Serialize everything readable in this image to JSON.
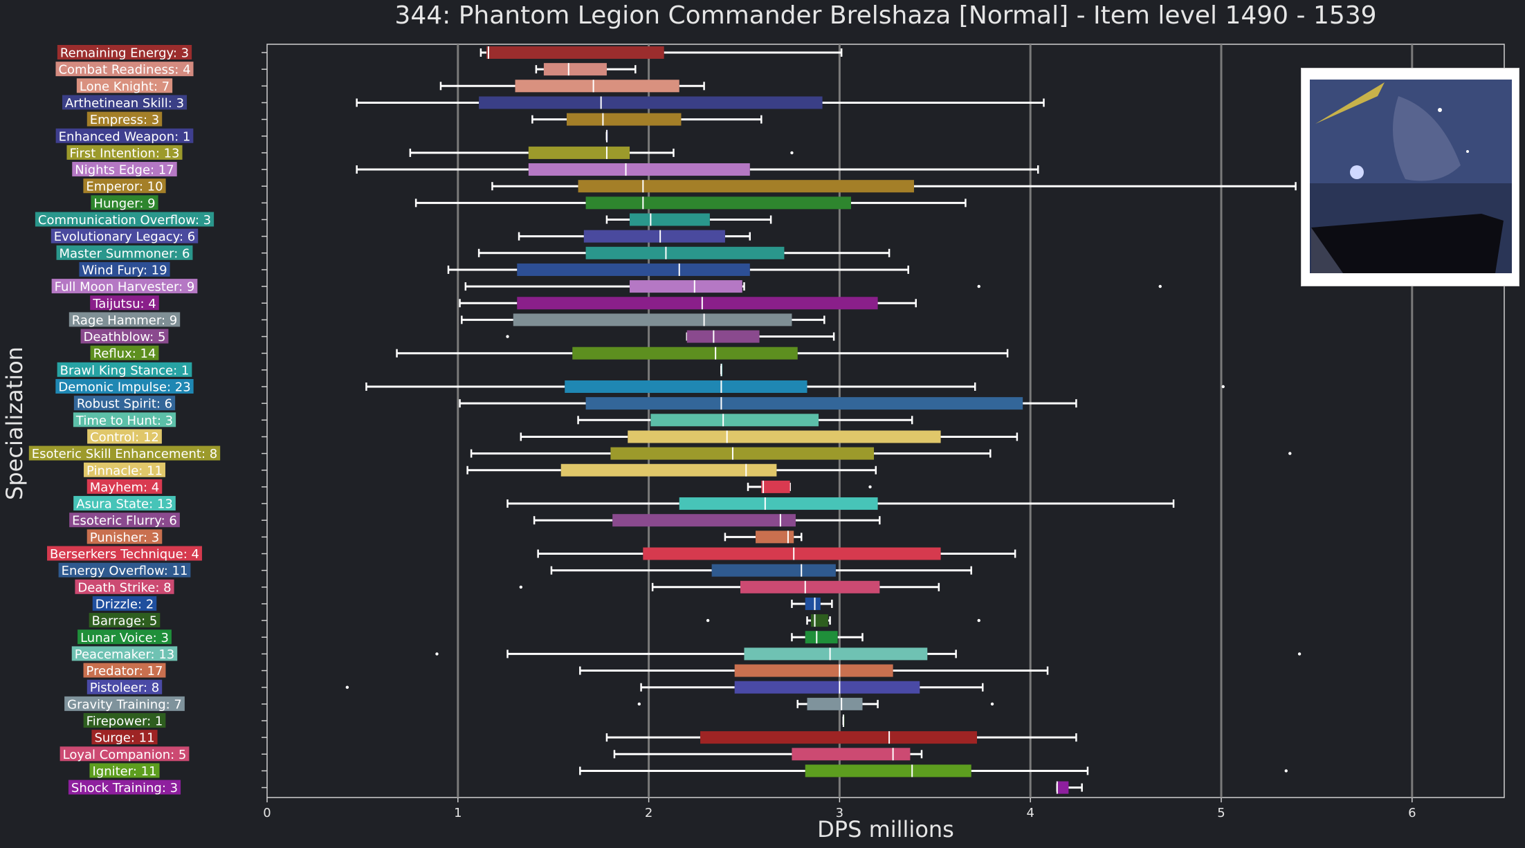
{
  "chart_data": {
    "type": "boxplot",
    "orientation": "horizontal",
    "title": "344: Phantom Legion Commander Brelshaza [Normal] - Item level 1490 - 1539",
    "xlabel": "DPS millions",
    "ylabel": "Specialization",
    "xlim": [
      0,
      6.5
    ],
    "xticks": [
      0,
      1,
      2,
      3,
      4,
      5,
      6
    ],
    "grid": "vertical major lines",
    "categories": [
      {
        "label": "Remaining Energy: 3",
        "color": "#9b2d2d",
        "whisker_low": 1.12,
        "q1": 1.15,
        "median": 1.16,
        "q3": 2.08,
        "whisker_high": 3.01,
        "outliers": []
      },
      {
        "label": "Combat Readiness: 4",
        "color": "#d48b80",
        "whisker_low": 1.41,
        "q1": 1.45,
        "median": 1.58,
        "q3": 1.78,
        "whisker_high": 1.93,
        "outliers": []
      },
      {
        "label": "Lone Knight: 7",
        "color": "#d9917f",
        "whisker_low": 0.91,
        "q1": 1.3,
        "median": 1.71,
        "q3": 2.16,
        "whisker_high": 2.29,
        "outliers": []
      },
      {
        "label": "Arthetinean Skill: 3",
        "color": "#3a3f86",
        "whisker_low": 0.47,
        "q1": 1.11,
        "median": 1.75,
        "q3": 2.91,
        "whisker_high": 4.07,
        "outliers": []
      },
      {
        "label": "Empress: 3",
        "color": "#a47f28",
        "whisker_low": 1.39,
        "q1": 1.57,
        "median": 1.76,
        "q3": 2.17,
        "whisker_high": 2.59,
        "outliers": []
      },
      {
        "label": "Enhanced Weapon: 1",
        "color": "#3f3f8f",
        "whisker_low": 1.78,
        "q1": 1.78,
        "median": 1.78,
        "q3": 1.78,
        "whisker_high": 1.78,
        "outliers": []
      },
      {
        "label": "First Intention: 13",
        "color": "#9c9a2b",
        "whisker_low": 0.75,
        "q1": 1.37,
        "median": 1.78,
        "q3": 1.9,
        "whisker_high": 2.13,
        "outliers": [
          2.75
        ]
      },
      {
        "label": "Nights Edge: 17",
        "color": "#b578c4",
        "whisker_low": 0.47,
        "q1": 1.37,
        "median": 1.88,
        "q3": 2.53,
        "whisker_high": 4.04,
        "outliers": []
      },
      {
        "label": "Emperor: 10",
        "color": "#a47f28",
        "whisker_low": 1.18,
        "q1": 1.63,
        "median": 1.97,
        "q3": 3.39,
        "whisker_high": 5.39,
        "outliers": []
      },
      {
        "label": "Hunger: 9",
        "color": "#2e862e",
        "whisker_low": 0.78,
        "q1": 1.67,
        "median": 1.97,
        "q3": 3.06,
        "whisker_high": 3.66,
        "outliers": []
      },
      {
        "label": "Communication Overflow: 3",
        "color": "#2a978c",
        "whisker_low": 1.78,
        "q1": 1.9,
        "median": 2.01,
        "q3": 2.32,
        "whisker_high": 2.64,
        "outliers": []
      },
      {
        "label": "Evolutionary Legacy: 6",
        "color": "#4a4a9e",
        "whisker_low": 1.32,
        "q1": 1.66,
        "median": 2.06,
        "q3": 2.4,
        "whisker_high": 2.53,
        "outliers": []
      },
      {
        "label": "Master Summoner: 6",
        "color": "#2a978c",
        "whisker_low": 1.11,
        "q1": 1.67,
        "median": 2.09,
        "q3": 2.71,
        "whisker_high": 3.26,
        "outliers": []
      },
      {
        "label": "Wind Fury: 19",
        "color": "#2d4f95",
        "whisker_low": 0.95,
        "q1": 1.31,
        "median": 2.16,
        "q3": 2.53,
        "whisker_high": 3.36,
        "outliers": []
      },
      {
        "label": "Full Moon Harvester: 9",
        "color": "#b578c4",
        "whisker_low": 1.04,
        "q1": 1.9,
        "median": 2.24,
        "q3": 2.49,
        "whisker_high": 2.5,
        "outliers": [
          3.73,
          4.68
        ]
      },
      {
        "label": "Taijutsu: 4",
        "color": "#8a1f8a",
        "whisker_low": 1.01,
        "q1": 1.31,
        "median": 2.28,
        "q3": 3.2,
        "whisker_high": 3.4,
        "outliers": []
      },
      {
        "label": "Rage Hammer: 9",
        "color": "#7f8f95",
        "whisker_low": 1.02,
        "q1": 1.29,
        "median": 2.29,
        "q3": 2.75,
        "whisker_high": 2.92,
        "outliers": []
      },
      {
        "label": "Deathblow: 5",
        "color": "#8a4a8e",
        "whisker_low": 2.2,
        "q1": 2.2,
        "median": 2.34,
        "q3": 2.58,
        "whisker_high": 2.97,
        "outliers": [
          1.26
        ]
      },
      {
        "label": "Reflux: 14",
        "color": "#5d8f1f",
        "whisker_low": 0.68,
        "q1": 1.6,
        "median": 2.35,
        "q3": 2.78,
        "whisker_high": 3.88,
        "outliers": []
      },
      {
        "label": "Brawl King Stance: 1",
        "color": "#27a3a3",
        "whisker_low": 2.38,
        "q1": 2.38,
        "median": 2.38,
        "q3": 2.38,
        "whisker_high": 2.38,
        "outliers": []
      },
      {
        "label": "Demonic Impulse: 23",
        "color": "#1f87b3",
        "whisker_low": 0.52,
        "q1": 1.56,
        "median": 2.38,
        "q3": 2.83,
        "whisker_high": 3.71,
        "outliers": [
          5.01
        ]
      },
      {
        "label": "Robust Spirit: 6",
        "color": "#336699",
        "whisker_low": 1.01,
        "q1": 1.67,
        "median": 2.38,
        "q3": 3.96,
        "whisker_high": 4.24,
        "outliers": []
      },
      {
        "label": "Time to Hunt: 3",
        "color": "#5cbfa8",
        "whisker_low": 1.63,
        "q1": 2.01,
        "median": 2.39,
        "q3": 2.89,
        "whisker_high": 3.38,
        "outliers": []
      },
      {
        "label": "Control: 12",
        "color": "#e0c76a",
        "whisker_low": 1.33,
        "q1": 1.89,
        "median": 2.41,
        "q3": 3.53,
        "whisker_high": 3.93,
        "outliers": []
      },
      {
        "label": "Esoteric Skill Enhancement: 8",
        "color": "#9c9a2b",
        "whisker_low": 1.07,
        "q1": 1.8,
        "median": 2.44,
        "q3": 3.18,
        "whisker_high": 3.79,
        "outliers": [
          5.36
        ]
      },
      {
        "label": "Pinnacle: 11",
        "color": "#e0c76a",
        "whisker_low": 1.05,
        "q1": 1.54,
        "median": 2.51,
        "q3": 2.67,
        "whisker_high": 3.19,
        "outliers": []
      },
      {
        "label": "Mayhem: 4",
        "color": "#d93a50",
        "whisker_low": 2.52,
        "q1": 2.59,
        "median": 2.6,
        "q3": 2.74,
        "whisker_high": 2.74,
        "outliers": [
          3.16
        ]
      },
      {
        "label": "Asura State: 13",
        "color": "#47c4b8",
        "whisker_low": 1.26,
        "q1": 2.16,
        "median": 2.61,
        "q3": 3.2,
        "whisker_high": 4.75,
        "outliers": []
      },
      {
        "label": "Esoteric Flurry: 6",
        "color": "#8a4a8e",
        "whisker_low": 1.4,
        "q1": 1.81,
        "median": 2.69,
        "q3": 2.77,
        "whisker_high": 3.21,
        "outliers": []
      },
      {
        "label": "Punisher: 3",
        "color": "#c9704f",
        "whisker_low": 2.4,
        "q1": 2.56,
        "median": 2.73,
        "q3": 2.76,
        "whisker_high": 2.8,
        "outliers": []
      },
      {
        "label": "Berserkers Technique: 4",
        "color": "#d63a4e",
        "whisker_low": 1.42,
        "q1": 1.97,
        "median": 2.76,
        "q3": 3.53,
        "whisker_high": 3.92,
        "outliers": []
      },
      {
        "label": "Energy Overflow: 11",
        "color": "#2f5a8f",
        "whisker_low": 1.49,
        "q1": 2.33,
        "median": 2.8,
        "q3": 2.98,
        "whisker_high": 3.69,
        "outliers": []
      },
      {
        "label": "Death Strike: 8",
        "color": "#cc4a72",
        "whisker_low": 2.02,
        "q1": 2.48,
        "median": 2.82,
        "q3": 3.21,
        "whisker_high": 3.52,
        "outliers": [
          1.33
        ]
      },
      {
        "label": "Drizzle: 2",
        "color": "#1f4f9e",
        "whisker_low": 2.75,
        "q1": 2.82,
        "median": 2.87,
        "q3": 2.9,
        "whisker_high": 2.96,
        "outliers": []
      },
      {
        "label": "Barrage: 5",
        "color": "#2e5e1f",
        "whisker_low": 2.83,
        "q1": 2.85,
        "median": 2.87,
        "q3": 2.94,
        "whisker_high": 2.95,
        "outliers": [
          2.31,
          3.73
        ]
      },
      {
        "label": "Lunar Voice: 3",
        "color": "#1f8f3a",
        "whisker_low": 2.75,
        "q1": 2.82,
        "median": 2.88,
        "q3": 2.99,
        "whisker_high": 3.12,
        "outliers": []
      },
      {
        "label": "Peacemaker: 13",
        "color": "#6fc2b3",
        "whisker_low": 1.26,
        "q1": 2.5,
        "median": 2.95,
        "q3": 3.46,
        "whisker_high": 3.61,
        "outliers": [
          0.89,
          5.41
        ]
      },
      {
        "label": "Predator: 17",
        "color": "#c9704f",
        "whisker_low": 1.64,
        "q1": 2.45,
        "median": 3.0,
        "q3": 3.28,
        "whisker_high": 4.09,
        "outliers": []
      },
      {
        "label": "Pistoleer: 8",
        "color": "#4a4aa6",
        "whisker_low": 1.96,
        "q1": 2.45,
        "median": 3.0,
        "q3": 3.42,
        "whisker_high": 3.75,
        "outliers": [
          0.42
        ]
      },
      {
        "label": "Gravity Training: 7",
        "color": "#7f939c",
        "whisker_low": 2.78,
        "q1": 2.83,
        "median": 3.01,
        "q3": 3.12,
        "whisker_high": 3.2,
        "outliers": [
          1.95,
          3.8
        ]
      },
      {
        "label": "Firepower: 1",
        "color": "#2e5e1f",
        "whisker_low": 3.02,
        "q1": 3.02,
        "median": 3.02,
        "q3": 3.02,
        "whisker_high": 3.02,
        "outliers": []
      },
      {
        "label": "Surge: 11",
        "color": "#9e2424",
        "whisker_low": 1.78,
        "q1": 2.27,
        "median": 3.26,
        "q3": 3.72,
        "whisker_high": 4.24,
        "outliers": []
      },
      {
        "label": "Loyal Companion: 5",
        "color": "#cc4a72",
        "whisker_low": 1.82,
        "q1": 2.75,
        "median": 3.28,
        "q3": 3.37,
        "whisker_high": 3.43,
        "outliers": []
      },
      {
        "label": "Igniter: 11",
        "color": "#5d9e1f",
        "whisker_low": 1.64,
        "q1": 2.82,
        "median": 3.38,
        "q3": 3.69,
        "whisker_high": 4.3,
        "outliers": [
          5.34
        ]
      },
      {
        "label": "Shock Training: 3",
        "color": "#8e1f9e",
        "whisker_low": 4.14,
        "q1": 4.14,
        "median": 4.14,
        "q3": 4.2,
        "whisker_high": 4.27,
        "outliers": []
      }
    ]
  }
}
